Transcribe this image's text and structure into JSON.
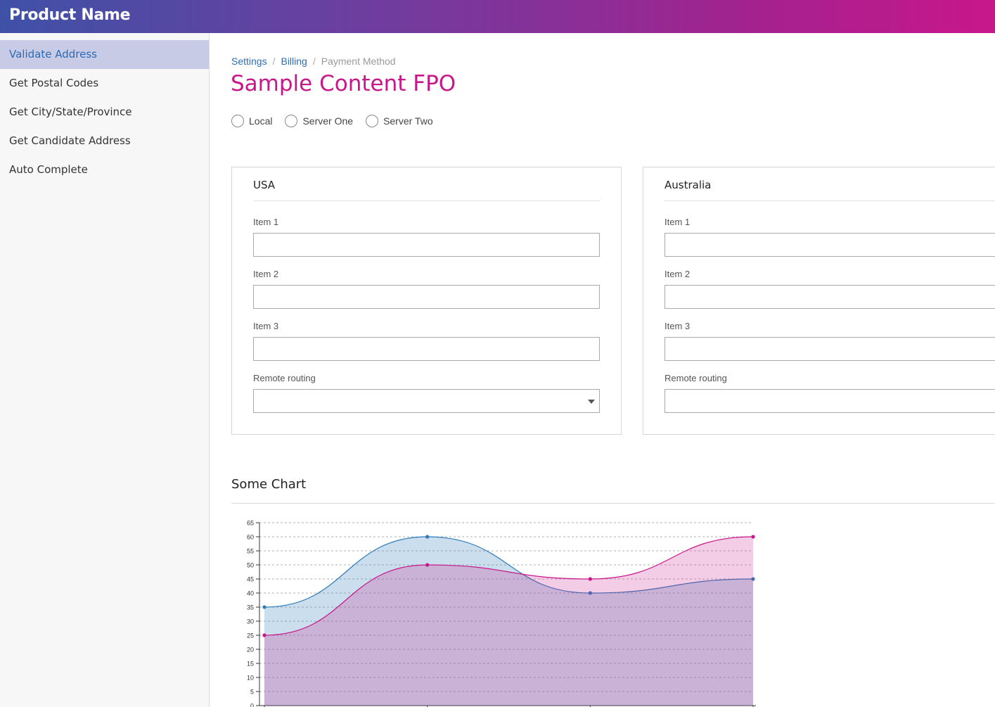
{
  "header": {
    "product_name": "Product Name"
  },
  "sidebar": {
    "items": [
      {
        "label": "Validate Address",
        "active": true
      },
      {
        "label": "Get Postal Codes",
        "active": false
      },
      {
        "label": "Get City/State/Province",
        "active": false
      },
      {
        "label": "Get Candidate Address",
        "active": false
      },
      {
        "label": "Auto Complete",
        "active": false
      }
    ]
  },
  "breadcrumb": {
    "items": [
      "Settings",
      "Billing"
    ],
    "current": "Payment Method",
    "separator": "/"
  },
  "page": {
    "title": "Sample Content FPO"
  },
  "radios": [
    {
      "label": "Local",
      "checked": false
    },
    {
      "label": "Server One",
      "checked": false
    },
    {
      "label": "Server Two",
      "checked": false
    }
  ],
  "panels": [
    {
      "title": "USA",
      "fields": [
        {
          "label": "Item 1",
          "value": ""
        },
        {
          "label": "Item 2",
          "value": ""
        },
        {
          "label": "Item 3",
          "value": ""
        }
      ],
      "select": {
        "label": "Remote routing",
        "value": ""
      }
    },
    {
      "title": "Australia",
      "fields": [
        {
          "label": "Item 1",
          "value": ""
        },
        {
          "label": "Item 2",
          "value": ""
        },
        {
          "label": "Item 3",
          "value": ""
        }
      ],
      "select": {
        "label": "Remote routing",
        "value": ""
      }
    }
  ],
  "chart": {
    "title": "Some Chart"
  },
  "colors": {
    "accent": "#c8178a",
    "link": "#2a6cb5",
    "series_blue": "#2e7bb8",
    "series_pink": "#c8178a"
  },
  "chart_data": {
    "type": "area",
    "x": [
      0,
      1,
      2,
      3
    ],
    "series": [
      {
        "values": [
          35,
          60,
          40,
          45
        ],
        "color": "#2e7bb8"
      },
      {
        "values": [
          25,
          50,
          45,
          60
        ],
        "color": "#c8178a"
      }
    ],
    "ylim": [
      0,
      65
    ],
    "yticks": [
      0,
      5,
      10,
      15,
      20,
      25,
      30,
      35,
      40,
      45,
      50,
      55,
      60,
      65
    ],
    "grid": true,
    "title": ""
  }
}
